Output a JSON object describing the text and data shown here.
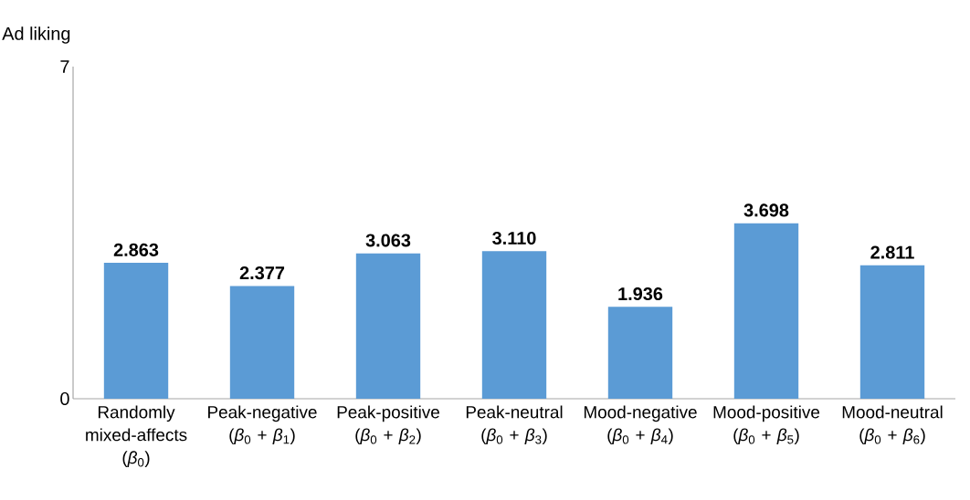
{
  "chart_data": {
    "type": "bar",
    "ylabel": "Ad liking",
    "categories": [
      "Randomly mixed-affects (*β*$_{0}$)",
      "Peak-negative (*β*$_{0}$ + *β*$_{1}$)",
      "Peak-positive (*β*$_{0}$ + *β*$_{2}$)",
      "Peak-neutral (*β*$_{0}$ + *β*$_{3}$)",
      "Mood-negative (*β*$_{0}$ + *β*$_{4}$)",
      "Mood-positive (*β*$_{0}$ + *β*$_{5}$)",
      "Mood-neutral (*β*$_{0}$ + *β*$_{6}$)"
    ],
    "values": [
      2.863,
      2.377,
      3.063,
      3.11,
      1.936,
      3.698,
      2.811
    ],
    "value_labels": [
      "2.863",
      "2.377",
      "3.063",
      "3.110",
      "1.936",
      "3.698",
      "2.811"
    ],
    "color": "#5b9bd5",
    "ylim": [
      0,
      7
    ],
    "yticks": [
      0,
      7
    ],
    "grid": false
  }
}
